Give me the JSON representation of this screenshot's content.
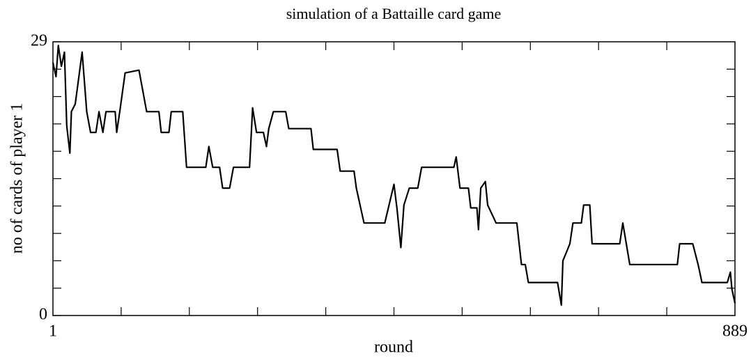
{
  "chart_data": {
    "type": "line",
    "title": "simulation of a Battaille card game",
    "xlabel": "round",
    "ylabel": "no of cards of player 1",
    "xlim": [
      1,
      889
    ],
    "ylim": [
      0,
      29
    ],
    "xticks": [
      1,
      889
    ],
    "yticks": [
      0,
      29
    ],
    "xticks_minor": [
      89.8,
      178.6,
      267.4,
      356.2,
      445,
      533.8,
      622.6,
      711.4,
      800.2
    ],
    "yticks_minor": [
      2.9,
      5.8,
      8.7,
      11.6,
      14.5,
      17.4,
      20.3,
      23.2,
      26.1
    ],
    "grid": false,
    "series": [
      {
        "name": "player 1",
        "color": "#000000",
        "x": [
          1,
          5,
          8,
          12,
          16,
          19,
          23,
          25,
          30,
          39,
          45,
          50,
          57,
          61,
          66,
          70,
          82,
          84,
          88,
          95,
          113,
          118,
          123,
          139,
          142,
          152,
          155,
          170,
          175,
          200,
          204,
          209,
          218,
          222,
          231,
          236,
          257,
          261,
          266,
          275,
          279,
          282,
          288,
          304,
          308,
          337,
          340,
          371,
          375,
          393,
          396,
          406,
          433,
          445,
          449,
          454,
          458,
          465,
          476,
          481,
          490,
          523,
          526,
          531,
          542,
          545,
          553,
          555,
          558,
          564,
          567,
          578,
          605,
          611,
          616,
          620,
          658,
          663,
          665,
          674,
          678,
          689,
          692,
          700,
          703,
          739,
          743,
          752,
          814,
          817,
          834,
          841,
          846,
          879,
          883,
          885,
          889
        ],
        "values": [
          26.8,
          25.3,
          28.6,
          26.4,
          27.9,
          20.1,
          17.2,
          21.6,
          22.4,
          27.9,
          21.6,
          19.4,
          19.4,
          21.6,
          19.4,
          21.6,
          21.6,
          19.4,
          21.6,
          25.7,
          26.0,
          23.8,
          21.6,
          21.6,
          19.4,
          19.4,
          21.6,
          21.6,
          15.7,
          15.7,
          17.9,
          15.7,
          15.7,
          13.5,
          13.5,
          15.7,
          15.7,
          22.0,
          19.4,
          19.4,
          17.9,
          19.8,
          21.6,
          21.6,
          19.8,
          19.8,
          17.6,
          17.6,
          15.3,
          15.3,
          13.5,
          9.8,
          9.8,
          13.9,
          11.3,
          7.2,
          11.7,
          13.5,
          13.5,
          15.7,
          15.7,
          15.7,
          16.8,
          13.5,
          13.5,
          11.4,
          11.4,
          9.1,
          13.5,
          14.2,
          11.7,
          9.8,
          9.8,
          5.4,
          5.4,
          3.5,
          3.5,
          1.1,
          5.8,
          7.6,
          9.8,
          9.8,
          11.7,
          11.7,
          7.6,
          7.6,
          9.8,
          5.4,
          5.4,
          7.6,
          7.6,
          5.4,
          3.5,
          3.5,
          4.6,
          2.8,
          1.3
        ]
      }
    ]
  }
}
